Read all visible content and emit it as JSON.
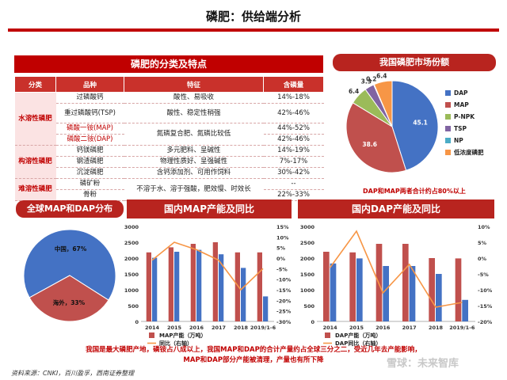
{
  "page": {
    "title": "磷肥：供给端分析",
    "conclusion_line1": "我国是最大磷肥产地，磷铵占八成以上，我国MAP和DAP的合计产量约占全球三分之二，受近几年去产能影响，",
    "conclusion_line2": "MAP和DAP部分产能被清理，产量也有所下降",
    "source": "资料来源：CNKI，百川盈孚，西南证券整理",
    "watermark": "雪球：未来智库"
  },
  "table": {
    "banner": "磷肥的分类及特点",
    "headers": [
      "分类",
      "品种",
      "特征",
      "含磷量"
    ],
    "rows": [
      {
        "category": "水溶性磷肥",
        "variety": "过磷酸钙",
        "feature": "酸性、易吸收",
        "content": "14%-18%"
      },
      {
        "category": "",
        "variety": "重过磷酸钙(TSP)",
        "feature": "酸性、稳定性稍强",
        "content": "42%-46%"
      },
      {
        "category": "",
        "variety": "磷酸一铵(MAP)",
        "feature": "氮磷复合肥、氮磷比较低",
        "content": "44%-52%",
        "highlight": true
      },
      {
        "category": "",
        "variety": "磷酸二铵(DAP)",
        "feature": "",
        "content": "42%-46%",
        "highlight": true
      },
      {
        "category": "构溶性磷肥",
        "variety": "钙镁磷肥",
        "feature": "多元肥料、呈碱性",
        "content": "14%-19%"
      },
      {
        "category": "",
        "variety": "钢渣磷肥",
        "feature": "物理性质好、呈强碱性",
        "content": "7%-17%"
      },
      {
        "category": "",
        "variety": "沉淀磷肥",
        "feature": "含钙添加剂、可用作饲料",
        "content": "30%-42%"
      },
      {
        "category": "难溶性磷肥",
        "variety": "磷矿粉",
        "feature": "不溶于水、溶于强酸，肥效慢、时效长",
        "content": "--"
      },
      {
        "category": "",
        "variety": "骨粉",
        "feature": "",
        "content": "22%-33%"
      }
    ]
  },
  "market_share": {
    "banner": "我国磷肥市场份额",
    "footnote": "DAP和MAP两者合计约占80%以上",
    "chart_data": {
      "type": "pie",
      "categories": [
        "DAP",
        "MAP",
        "P-NPK",
        "TSP",
        "NP",
        "低浓度磷肥"
      ],
      "values": [
        45.1,
        38.6,
        6.4,
        3.3,
        0.2,
        6.4
      ],
      "labels": [
        "45.1",
        "38.6",
        "6.4",
        "3.3",
        "0.2",
        "6.4"
      ],
      "colors": [
        "#4472c4",
        "#c0504d",
        "#9bbb59",
        "#8064a2",
        "#4bacc6",
        "#f79646"
      ]
    }
  },
  "global": {
    "banner": "全球MAP和DAP分布",
    "chart_data": {
      "type": "pie",
      "categories": [
        "中国",
        "海外"
      ],
      "values": [
        67,
        33
      ],
      "labels": [
        "中国，67%",
        "海外，33%"
      ],
      "colors": [
        "#4472c4",
        "#c0504d"
      ]
    }
  },
  "map_chart": {
    "banner": "国内MAP产能及同比",
    "chart_data": {
      "type": "bar",
      "categories": [
        "2014",
        "2015",
        "2016",
        "2017",
        "2018",
        "2019/1-6"
      ],
      "series": [
        {
          "name": "MAP产能（万吨）",
          "type": "bar",
          "color": "#c0504d",
          "values": [
            2180,
            2340,
            2450,
            2500,
            2180,
            2180
          ]
        },
        {
          "name": "",
          "type": "bar",
          "color": "#4472c4",
          "values": [
            2010,
            2200,
            2260,
            2120,
            1690,
            790
          ]
        },
        {
          "name": "同比（右轴）",
          "type": "line",
          "color": "#f79646",
          "axis": "right",
          "values": [
            -1,
            7.5,
            4,
            -1,
            -15,
            -5
          ]
        }
      ],
      "ylim": [
        0,
        3000
      ],
      "y2lim": [
        -30,
        15
      ],
      "yticks": [
        "0",
        "500",
        "1000",
        "1500",
        "2000",
        "2500",
        "3000"
      ],
      "y2ticks": [
        "-30%",
        "-25%",
        "-20%",
        "-15%",
        "-10%",
        "-5%",
        "0%",
        "5%",
        "10%",
        "15%"
      ],
      "legend": "bottom"
    }
  },
  "dap_chart": {
    "banner": "国内DAP产能及同比",
    "chart_data": {
      "type": "bar",
      "categories": [
        "2014",
        "2015",
        "2016",
        "2017",
        "2018",
        "2019/1-6"
      ],
      "series": [
        {
          "name": "DAP产能（万吨）",
          "type": "bar",
          "color": "#c0504d",
          "values": [
            2200,
            2180,
            2450,
            2450,
            2000,
            1990
          ]
        },
        {
          "name": "",
          "type": "bar",
          "color": "#4472c4",
          "values": [
            1830,
            1990,
            1750,
            1750,
            1500,
            680
          ]
        },
        {
          "name": "DAP同比（右轴）",
          "type": "line",
          "color": "#f79646",
          "axis": "right",
          "values": [
            -3,
            8.5,
            -11,
            -2,
            -15.5,
            -14
          ]
        }
      ],
      "ylim": [
        0,
        3000
      ],
      "y2lim": [
        -20,
        10
      ],
      "yticks": [
        "0",
        "500",
        "1000",
        "1500",
        "2000",
        "2500",
        "3000"
      ],
      "y2ticks": [
        "-20%",
        "-15%",
        "-10%",
        "-5%",
        "0%",
        "5%",
        "10%"
      ],
      "legend": "bottom"
    }
  }
}
